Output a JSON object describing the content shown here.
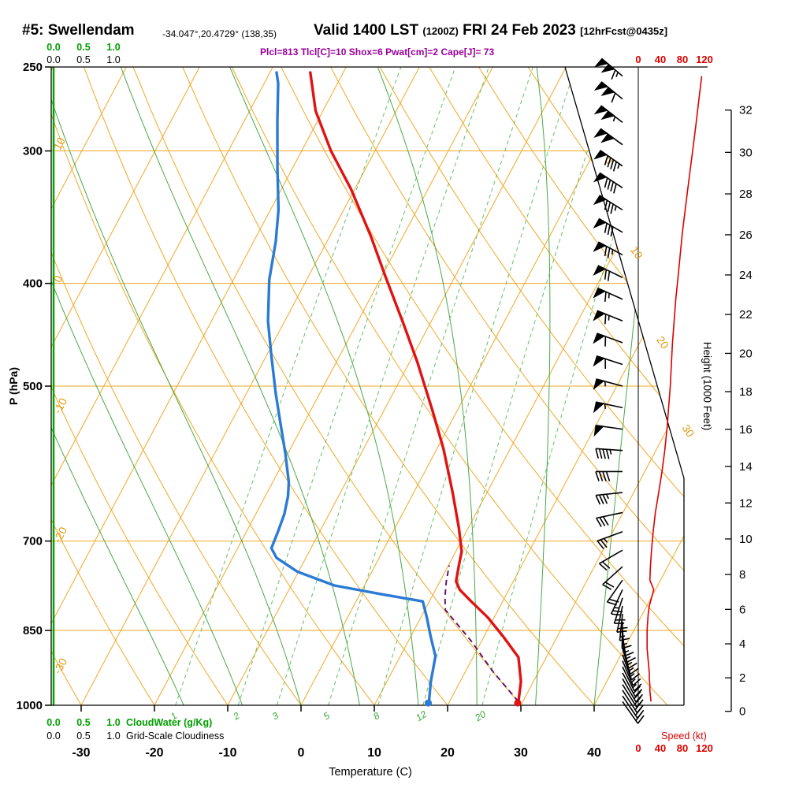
{
  "header": {
    "station": "#5: Swellendam",
    "coords": "-34.047°,20.4729° (138,35)",
    "valid": "Valid 1400 LST",
    "valid_z": "(1200Z)",
    "valid_date": "FRI 24 Feb 2023",
    "fcst": "[12hrFcst@0435z]",
    "params": "Plcl=813 Tlcl[C]=10 Shox=6 Pwat[cm]=2 Cape[J]= 73"
  },
  "axes": {
    "pressure": {
      "label": "P (hPa)",
      "ticks": [
        250,
        300,
        400,
        500,
        700,
        850,
        1000
      ]
    },
    "temperature": {
      "label": "Temperature (C)",
      "ticks": [
        -30,
        -20,
        -10,
        0,
        10,
        20,
        30,
        40
      ]
    },
    "height": {
      "label": "Height (1000 Feet)",
      "ticks": [
        0,
        2,
        4,
        6,
        8,
        10,
        12,
        14,
        16,
        18,
        20,
        22,
        24,
        26,
        28,
        30,
        32
      ]
    },
    "speed": {
      "label": "Speed (kt)",
      "ticks": [
        0,
        40,
        80,
        120
      ]
    },
    "cloudwater": {
      "label": "CloudWater (g/Kg)",
      "scale": [
        "0.0",
        "0.5",
        "1.0"
      ]
    },
    "cloudiness": {
      "label": "Grid-Scale Cloudiness",
      "scale": [
        "0.0",
        "0.5",
        "1.0"
      ]
    }
  },
  "colors": {
    "temperature_curve": "#e01212",
    "dewpoint_curve": "#2b7bd4",
    "parcel_curve": "#5c1066",
    "grid_orange": "#f0a826",
    "grid_label_orange": "#e09a10",
    "moist_adiabat": "#4aa845",
    "mixing_ratio": "#63c063",
    "mixing_label": "#3aa83a",
    "cloudwater_line": "#00a800",
    "green_text": "#00a000",
    "speed_red": "#dd0000",
    "params_text": "#990099",
    "axis_black": "#000000"
  },
  "chart_data": {
    "type": "skewt-sounding",
    "pressure_range_hpa": [
      250,
      1000
    ],
    "temperature_range_c": [
      -30,
      40
    ],
    "isotherm_step_c": 10,
    "isotherm_labels": [
      0,
      10,
      20,
      30
    ],
    "dry_adiabat_labels": [
      10,
      0,
      -10,
      -20,
      -30
    ],
    "mixing_ratios_gkg": [
      1,
      2,
      3,
      5,
      8,
      12,
      20
    ],
    "moist_adiabats_start_c": [
      -16,
      -8,
      0,
      8,
      16,
      24,
      32,
      40
    ],
    "surface": {
      "temperature_c": 29.4,
      "dewpoint_c": 17.2
    },
    "temperature_profile": [
      [
        253,
        -44.5
      ],
      [
        275,
        -41.0
      ],
      [
        300,
        -36.0
      ],
      [
        326,
        -30.5
      ],
      [
        361,
        -24.4
      ],
      [
        394,
        -19.5
      ],
      [
        436,
        -13.7
      ],
      [
        475,
        -8.9
      ],
      [
        526,
        -3.5
      ],
      [
        573,
        0.9
      ],
      [
        630,
        5.3
      ],
      [
        680,
        8.7
      ],
      [
        716,
        10.8
      ],
      [
        737,
        11.4
      ],
      [
        764,
        12.2
      ],
      [
        778,
        13.3
      ],
      [
        798,
        15.7
      ],
      [
        826,
        19.1
      ],
      [
        861,
        22.6
      ],
      [
        901,
        26.2
      ],
      [
        950,
        28.3
      ],
      [
        992,
        29.4
      ]
    ],
    "dewpoint_profile": [
      [
        253,
        -49.1
      ],
      [
        259,
        -48.1
      ],
      [
        281,
        -45.5
      ],
      [
        312,
        -42.0
      ],
      [
        341,
        -38.9
      ],
      [
        365,
        -37.0
      ],
      [
        397,
        -35.1
      ],
      [
        434,
        -32.3
      ],
      [
        466,
        -29.5
      ],
      [
        508,
        -26.0
      ],
      [
        542,
        -23.2
      ],
      [
        578,
        -20.4
      ],
      [
        616,
        -17.8
      ],
      [
        635,
        -16.9
      ],
      [
        660,
        -16.1
      ],
      [
        686,
        -15.7
      ],
      [
        711,
        -15.4
      ],
      [
        726,
        -14.0
      ],
      [
        748,
        -10.2
      ],
      [
        771,
        -4.1
      ],
      [
        786,
        3.1
      ],
      [
        798,
        9.1
      ],
      [
        826,
        10.8
      ],
      [
        861,
        12.7
      ],
      [
        899,
        14.8
      ],
      [
        950,
        16.0
      ],
      [
        992,
        17.2
      ]
    ],
    "parcel_profile": [
      [
        992,
        29.4
      ],
      [
        930,
        23.8
      ],
      [
        870,
        18.6
      ],
      [
        813,
        12.8
      ],
      [
        790,
        11.8
      ],
      [
        765,
        10.9
      ],
      [
        738,
        10.1
      ]
    ],
    "wind_profile": [
      [
        255,
        115,
        310
      ],
      [
        268,
        110,
        309
      ],
      [
        282,
        105,
        308
      ],
      [
        296,
        100,
        306
      ],
      [
        310,
        95,
        305
      ],
      [
        325,
        90,
        303
      ],
      [
        341,
        85,
        302
      ],
      [
        358,
        80,
        300
      ],
      [
        376,
        76,
        298
      ],
      [
        395,
        72,
        296
      ],
      [
        414,
        68,
        294
      ],
      [
        434,
        65,
        292
      ],
      [
        455,
        62,
        290
      ],
      [
        477,
        60,
        288
      ],
      [
        500,
        58,
        285
      ],
      [
        524,
        55,
        282
      ],
      [
        549,
        52,
        278
      ],
      [
        575,
        48,
        274
      ],
      [
        602,
        43,
        270
      ],
      [
        630,
        37,
        264
      ],
      [
        658,
        31,
        258
      ],
      [
        686,
        27,
        250
      ],
      [
        714,
        24,
        240
      ],
      [
        740,
        22,
        228
      ],
      [
        762,
        21,
        215
      ],
      [
        778,
        28,
        205
      ],
      [
        792,
        24,
        198
      ],
      [
        806,
        20,
        192
      ],
      [
        820,
        18,
        186
      ],
      [
        834,
        17,
        181
      ],
      [
        848,
        16,
        176
      ],
      [
        860,
        16,
        171
      ],
      [
        872,
        16,
        167
      ],
      [
        884,
        16,
        163
      ],
      [
        896,
        17,
        160
      ],
      [
        908,
        18,
        157
      ],
      [
        920,
        19,
        154
      ],
      [
        932,
        20,
        152
      ],
      [
        944,
        20,
        150
      ],
      [
        956,
        21,
        148
      ],
      [
        968,
        21,
        147
      ],
      [
        980,
        22,
        146
      ],
      [
        992,
        23,
        145
      ]
    ]
  }
}
